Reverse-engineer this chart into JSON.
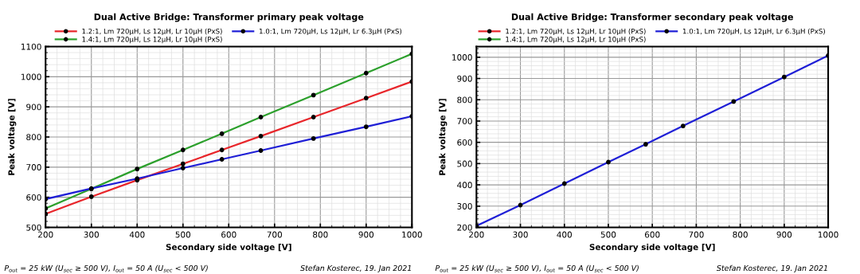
{
  "chart_data": [
    {
      "type": "line",
      "title": "Dual Active Bridge: Transformer primary peak voltage",
      "xlabel": "Secondary side voltage [V]",
      "ylabel": "Peak voltage [V]",
      "x": [
        200,
        300,
        400,
        500,
        585,
        670,
        785,
        900,
        1000
      ],
      "series": [
        {
          "name": "1.2:1, Lm 720µH, Ls 12µH, Lr 10µH (PxS)",
          "color": "#e8262b",
          "values": [
            545,
            602,
            657,
            711,
            757,
            803,
            866,
            929,
            984
          ]
        },
        {
          "name": "1.4:1, Lm 720µH, Ls 12µH, Lr 10µH (PxS)",
          "color": "#2ca02c",
          "values": [
            563,
            628,
            694,
            757,
            811,
            866,
            939,
            1012,
            1076
          ]
        },
        {
          "name": "1.0:1, Lm 720µH, Ls 12µH, Lr 6.3µH (PxS)",
          "color": "#1f1fd6",
          "values": [
            594,
            629,
            662,
            697,
            726,
            755,
            795,
            834,
            869
          ]
        }
      ],
      "xlim": [
        200,
        1000
      ],
      "xticks": [
        200,
        300,
        400,
        500,
        600,
        700,
        800,
        900,
        1000
      ],
      "ylim": [
        500,
        1100
      ],
      "yticks": [
        500,
        600,
        700,
        800,
        900,
        1000,
        1100
      ],
      "grid": true,
      "legend": "top",
      "marker": "circle",
      "line_style": "solid",
      "annotations": [
        "P$_{out}$ = 25 kW (U$_{sec}$ ≥ 500 V), I$_{out}$ = 50 A (U$_{sec}$ < 500 V)",
        "Stefan Kosterec, 19. Jan 2021"
      ]
    },
    {
      "type": "line",
      "title": "Dual Active Bridge: Transformer secondary peak voltage",
      "xlabel": "Secondary side voltage [V]",
      "ylabel": "Peak voltage [V]",
      "x": [
        200,
        300,
        400,
        500,
        585,
        670,
        785,
        900,
        1000
      ],
      "series": [
        {
          "name": "1.2:1, Lm 720µH, Ls 12µH, Lr 10µH (PxS)",
          "color": "#e8262b",
          "values": [
            null,
            null,
            null,
            null,
            null,
            null,
            null,
            null,
            null
          ]
        },
        {
          "name": "1.4:1, Lm 720µH, Ls 12µH, Lr 10µH (PxS)",
          "color": "#2ca02c",
          "values": [
            null,
            null,
            null,
            null,
            null,
            null,
            null,
            null,
            null
          ]
        },
        {
          "name": "1.0:1, Lm 720µH, Ls 12µH, Lr 6.3µH (PxS)",
          "color": "#1f1fd6",
          "values": [
            207,
            305,
            406,
            507,
            591,
            677,
            792,
            907,
            1008
          ]
        }
      ],
      "xlim": [
        200,
        1000
      ],
      "xticks": [
        200,
        300,
        400,
        500,
        600,
        700,
        800,
        900,
        1000
      ],
      "ylim": [
        200,
        1050
      ],
      "yticks": [
        200,
        300,
        400,
        500,
        600,
        700,
        800,
        900,
        1000
      ],
      "grid": true,
      "legend": "top",
      "marker": "circle",
      "line_style": "solid",
      "annotations": [
        "P$_{out}$ = 25 kW (U$_{sec}$ ≥ 500 V), I$_{out}$ = 50 A (U$_{sec}$ < 500 V)",
        "Stefan Kosterec, 19. Jan 2021"
      ]
    }
  ]
}
